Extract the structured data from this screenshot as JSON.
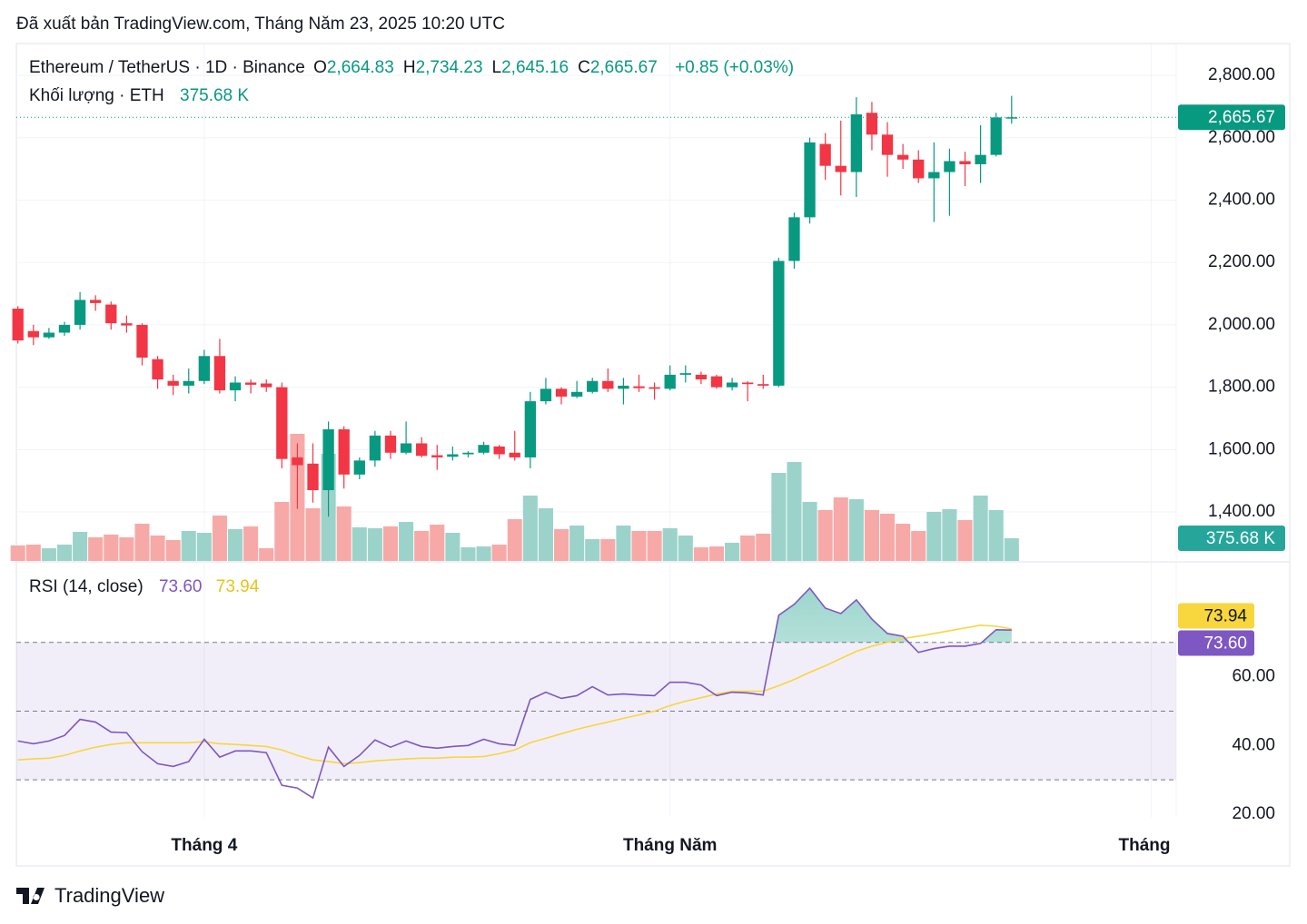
{
  "header": "Đã xuất bản TradingView.com, Tháng Năm 23, 2025 10:20 UTC",
  "chart_data": {
    "type": "candlestick",
    "title": "Ethereum / TetherUS · 1D · Binance",
    "legend_items": [
      {
        "key": "O",
        "value": "2,664.83"
      },
      {
        "key": "H",
        "value": "2,734.23"
      },
      {
        "key": "L",
        "value": "2,645.16"
      },
      {
        "key": "C",
        "value": "2,665.67"
      }
    ],
    "change_label": "+0.85 (+0.03%)",
    "last_price_label": "2,665.67",
    "colors": {
      "up": "#089981",
      "down": "#f23645",
      "volume_up": "#9bd3ca",
      "volume_down": "#f7a9a7"
    },
    "xlim": [
      -0.1,
      74.6
    ],
    "xticks": [
      {
        "value": 12,
        "label": "Tháng 4"
      },
      {
        "value": 42,
        "label": "Tháng Năm"
      },
      {
        "value": 73,
        "label": "Tháng"
      }
    ],
    "ylim": [
      1243,
      2902
    ],
    "yticks": [
      {
        "value": 1400,
        "label": "1,400.00"
      },
      {
        "value": 1600,
        "label": "1,600.00"
      },
      {
        "value": 1800,
        "label": "1,800.00"
      },
      {
        "value": 2000,
        "label": "2,000.00"
      },
      {
        "value": 2200,
        "label": "2,200.00"
      },
      {
        "value": 2400,
        "label": "2,400.00"
      },
      {
        "value": 2600,
        "label": "2,600.00"
      },
      {
        "value": 2800,
        "label": "2,800.00"
      }
    ],
    "grid": true,
    "open": [
      2052,
      1980,
      1960,
      1975,
      2000,
      2080,
      2065,
      2005,
      2000,
      1890,
      1820,
      1805,
      1820,
      1900,
      1790,
      1815,
      1812,
      1800,
      1575,
      1555,
      1470,
      1665,
      1520,
      1565,
      1645,
      1590,
      1620,
      1582,
      1577,
      1585,
      1590,
      1610,
      1590,
      1575,
      1755,
      1795,
      1770,
      1785,
      1820,
      1795,
      1803,
      1800,
      1795,
      1840,
      1840,
      1835,
      1800,
      1815,
      1810,
      1805,
      2205,
      2345,
      2580,
      2510,
      2490,
      2680,
      2610,
      2545,
      2530,
      2470,
      2490,
      2525,
      2515,
      2545,
      2664.83
    ],
    "high": [
      2060,
      2000,
      1990,
      2010,
      2105,
      2095,
      2075,
      2030,
      2005,
      1900,
      1840,
      1860,
      1920,
      1955,
      1835,
      1825,
      1825,
      1815,
      1620,
      1620,
      1690,
      1675,
      1575,
      1660,
      1660,
      1690,
      1640,
      1615,
      1610,
      1595,
      1625,
      1615,
      1660,
      1785,
      1830,
      1800,
      1820,
      1830,
      1860,
      1830,
      1840,
      1815,
      1870,
      1870,
      1850,
      1840,
      1830,
      1820,
      1840,
      2215,
      2360,
      2600,
      2615,
      2655,
      2730,
      2715,
      2650,
      2580,
      2560,
      2585,
      2565,
      2555,
      2640,
      2680,
      2734.23
    ],
    "low": [
      1940,
      1935,
      1955,
      1965,
      1985,
      2045,
      1985,
      1975,
      1870,
      1795,
      1775,
      1780,
      1810,
      1780,
      1755,
      1780,
      1785,
      1540,
      1410,
      1430,
      1385,
      1475,
      1505,
      1545,
      1570,
      1585,
      1575,
      1535,
      1565,
      1575,
      1585,
      1570,
      1565,
      1540,
      1745,
      1745,
      1765,
      1780,
      1785,
      1745,
      1785,
      1760,
      1790,
      1815,
      1810,
      1795,
      1790,
      1755,
      1795,
      1800,
      2180,
      2325,
      2465,
      2415,
      2410,
      2560,
      2475,
      2500,
      2455,
      2330,
      2350,
      2445,
      2455,
      2540,
      2645.16
    ],
    "close": [
      1950,
      1960,
      1975,
      2000,
      2080,
      2070,
      2005,
      1998,
      1895,
      1825,
      1805,
      1820,
      1900,
      1790,
      1815,
      1808,
      1800,
      1570,
      1550,
      1470,
      1665,
      1520,
      1565,
      1645,
      1590,
      1620,
      1580,
      1575,
      1585,
      1590,
      1615,
      1585,
      1575,
      1755,
      1795,
      1770,
      1785,
      1820,
      1795,
      1805,
      1797,
      1795,
      1840,
      1845,
      1825,
      1800,
      1815,
      1810,
      1805,
      2205,
      2345,
      2585,
      2510,
      2490,
      2675,
      2610,
      2545,
      2530,
      2470,
      2490,
      2525,
      2515,
      2545,
      2665,
      2665.67
    ],
    "volume": {
      "title": "Khối lượng · ETH",
      "values": [
        256,
        270,
        210,
        270,
        481,
        391,
        436,
        391,
        616,
        421,
        346,
        496,
        466,
        752,
        526,
        571,
        210,
        977,
        2104,
        872,
        1774,
        902,
        556,
        541,
        571,
        646,
        496,
        601,
        466,
        225,
        240,
        270,
        691,
        1082,
        872,
        526,
        586,
        361,
        361,
        586,
        496,
        496,
        541,
        421,
        225,
        240,
        301,
        421,
        451,
        1458,
        1638,
        977,
        842,
        1052,
        1022,
        842,
        782,
        616,
        496,
        812,
        857,
        676,
        1082,
        842,
        375.68
      ],
      "last_label": "375.68 K"
    },
    "rsi": {
      "title": "RSI (14, close)",
      "ylim": [
        19.2,
        93.2
      ],
      "yticks": [
        {
          "value": 20,
          "label": "20.00"
        },
        {
          "value": 40,
          "label": "40.00"
        },
        {
          "value": 60,
          "label": "60.00"
        }
      ],
      "bands": [
        70,
        50,
        30
      ],
      "series": [
        {
          "color": "#7e57c2",
          "last_label": "73.60",
          "values": [
            41.3,
            40.5,
            41.3,
            42.9,
            47.6,
            46.8,
            43.9,
            43.7,
            38.2,
            34.7,
            33.9,
            35.3,
            41.8,
            36.6,
            38.4,
            38.4,
            37.9,
            28.4,
            27.6,
            24.7,
            39.5,
            33.9,
            37.1,
            41.6,
            39.5,
            41.3,
            39.7,
            39.2,
            39.7,
            40.0,
            41.8,
            40.5,
            40.0,
            53.4,
            55.5,
            53.7,
            54.5,
            57.1,
            54.7,
            55.0,
            54.7,
            54.5,
            58.4,
            58.4,
            57.6,
            54.5,
            55.5,
            55.3,
            54.7,
            77.9,
            81.1,
            85.8,
            80.0,
            78.4,
            82.4,
            76.8,
            72.6,
            71.8,
            67.1,
            68.2,
            68.9,
            68.9,
            69.7,
            73.7,
            73.6
          ]
        },
        {
          "color": "#f7d63e",
          "last_label": "73.94",
          "values": [
            35.8,
            36.1,
            36.3,
            37.1,
            38.4,
            39.5,
            40.3,
            40.8,
            40.8,
            40.8,
            40.8,
            40.8,
            41.1,
            40.5,
            40.3,
            40.0,
            39.7,
            38.7,
            37.1,
            35.8,
            35.3,
            34.7,
            35.0,
            35.5,
            35.8,
            36.1,
            36.3,
            36.3,
            36.6,
            36.6,
            36.8,
            37.6,
            38.7,
            40.8,
            42.1,
            43.4,
            44.7,
            45.8,
            46.8,
            47.9,
            48.9,
            50.0,
            51.6,
            52.9,
            53.9,
            55.0,
            55.8,
            55.8,
            55.8,
            57.4,
            59.2,
            61.3,
            63.2,
            65.3,
            67.4,
            68.9,
            70.0,
            71.1,
            71.8,
            72.6,
            73.4,
            74.2,
            75.0,
            74.7,
            73.94
          ]
        }
      ]
    }
  },
  "footer": "TradingView"
}
